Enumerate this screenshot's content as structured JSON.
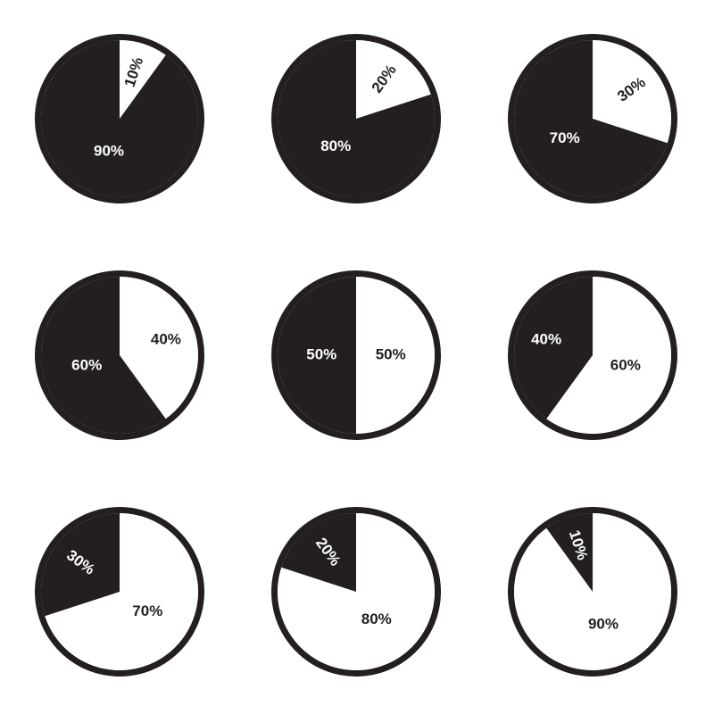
{
  "chart_data": [
    {
      "type": "pie",
      "values": [
        10,
        90
      ],
      "value_labels": [
        "10%",
        "90%"
      ],
      "colors": [
        "#ffffff",
        "#231f20"
      ]
    },
    {
      "type": "pie",
      "values": [
        20,
        80
      ],
      "value_labels": [
        "20%",
        "80%"
      ],
      "colors": [
        "#ffffff",
        "#231f20"
      ]
    },
    {
      "type": "pie",
      "values": [
        30,
        70
      ],
      "value_labels": [
        "30%",
        "70%"
      ],
      "colors": [
        "#ffffff",
        "#231f20"
      ]
    },
    {
      "type": "pie",
      "values": [
        40,
        60
      ],
      "value_labels": [
        "40%",
        "60%"
      ],
      "colors": [
        "#ffffff",
        "#231f20"
      ]
    },
    {
      "type": "pie",
      "values": [
        50,
        50
      ],
      "value_labels": [
        "50%",
        "50%"
      ],
      "colors": [
        "#ffffff",
        "#231f20"
      ]
    },
    {
      "type": "pie",
      "values": [
        60,
        40
      ],
      "value_labels": [
        "60%",
        "40%"
      ],
      "colors": [
        "#ffffff",
        "#231f20"
      ]
    },
    {
      "type": "pie",
      "values": [
        70,
        30
      ],
      "value_labels": [
        "70%",
        "30%"
      ],
      "colors": [
        "#ffffff",
        "#231f20"
      ]
    },
    {
      "type": "pie",
      "values": [
        80,
        20
      ],
      "value_labels": [
        "80%",
        "20%"
      ],
      "colors": [
        "#ffffff",
        "#231f20"
      ]
    },
    {
      "type": "pie",
      "values": [
        90,
        10
      ],
      "value_labels": [
        "90%",
        "10%"
      ],
      "colors": [
        "#ffffff",
        "#231f20"
      ]
    }
  ]
}
